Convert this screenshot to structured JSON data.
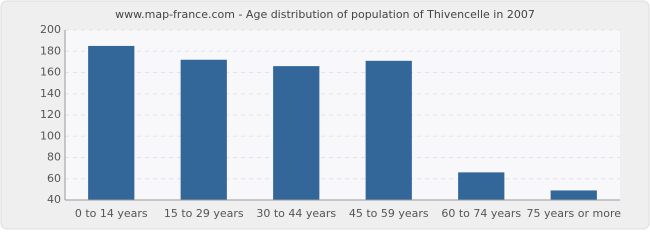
{
  "chart_data": {
    "type": "bar",
    "title": "www.map-france.com - Age distribution of population of Thivencelle in 2007",
    "categories": [
      "0 to 14 years",
      "15 to 29 years",
      "30 to 44 years",
      "45 to 59 years",
      "60 to 74 years",
      "75 years or more"
    ],
    "values": [
      185,
      172,
      166,
      171,
      66,
      49
    ],
    "color": "#336699",
    "ylim": [
      40,
      200
    ],
    "yticks": [
      40,
      60,
      80,
      100,
      120,
      140,
      160,
      180,
      200
    ],
    "grid": true
  }
}
